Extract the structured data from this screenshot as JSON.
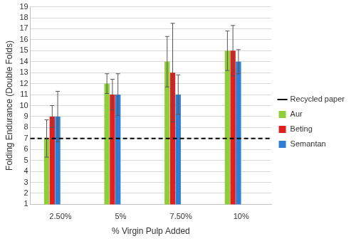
{
  "chart_data": {
    "type": "bar",
    "x_label": "% Virgin Pulp Added",
    "y_label": "Folding Endurance (Double Folds)",
    "categories": [
      "2.50%",
      "5%",
      "7.50%",
      "10%"
    ],
    "series": [
      {
        "name": "Aur",
        "type": "bar",
        "color": "#8fce3a",
        "values": [
          7,
          12,
          14,
          15
        ],
        "errors": [
          1.7,
          0.9,
          2.3,
          1.8
        ]
      },
      {
        "name": "Beting",
        "type": "bar",
        "color": "#e0201f",
        "values": [
          9,
          11,
          13,
          15
        ],
        "errors": [
          1,
          1.4,
          4.5,
          2.3
        ]
      },
      {
        "name": "Semantan",
        "type": "bar",
        "color": "#2e7ed3",
        "values": [
          9,
          11,
          11,
          14
        ],
        "errors": [
          2.3,
          1.9,
          1.8,
          1.1
        ]
      },
      {
        "name": "Recycled paper",
        "type": "line",
        "line_style": "dashed",
        "color": "#000000",
        "values": [
          7,
          7,
          7,
          7
        ]
      }
    ],
    "ylim": [
      1,
      19
    ],
    "yticks": [
      1,
      2,
      3,
      4,
      5,
      6,
      7,
      8,
      9,
      10,
      11,
      12,
      13,
      14,
      15,
      16,
      17,
      18,
      19
    ],
    "grid": true,
    "legend": "right"
  }
}
